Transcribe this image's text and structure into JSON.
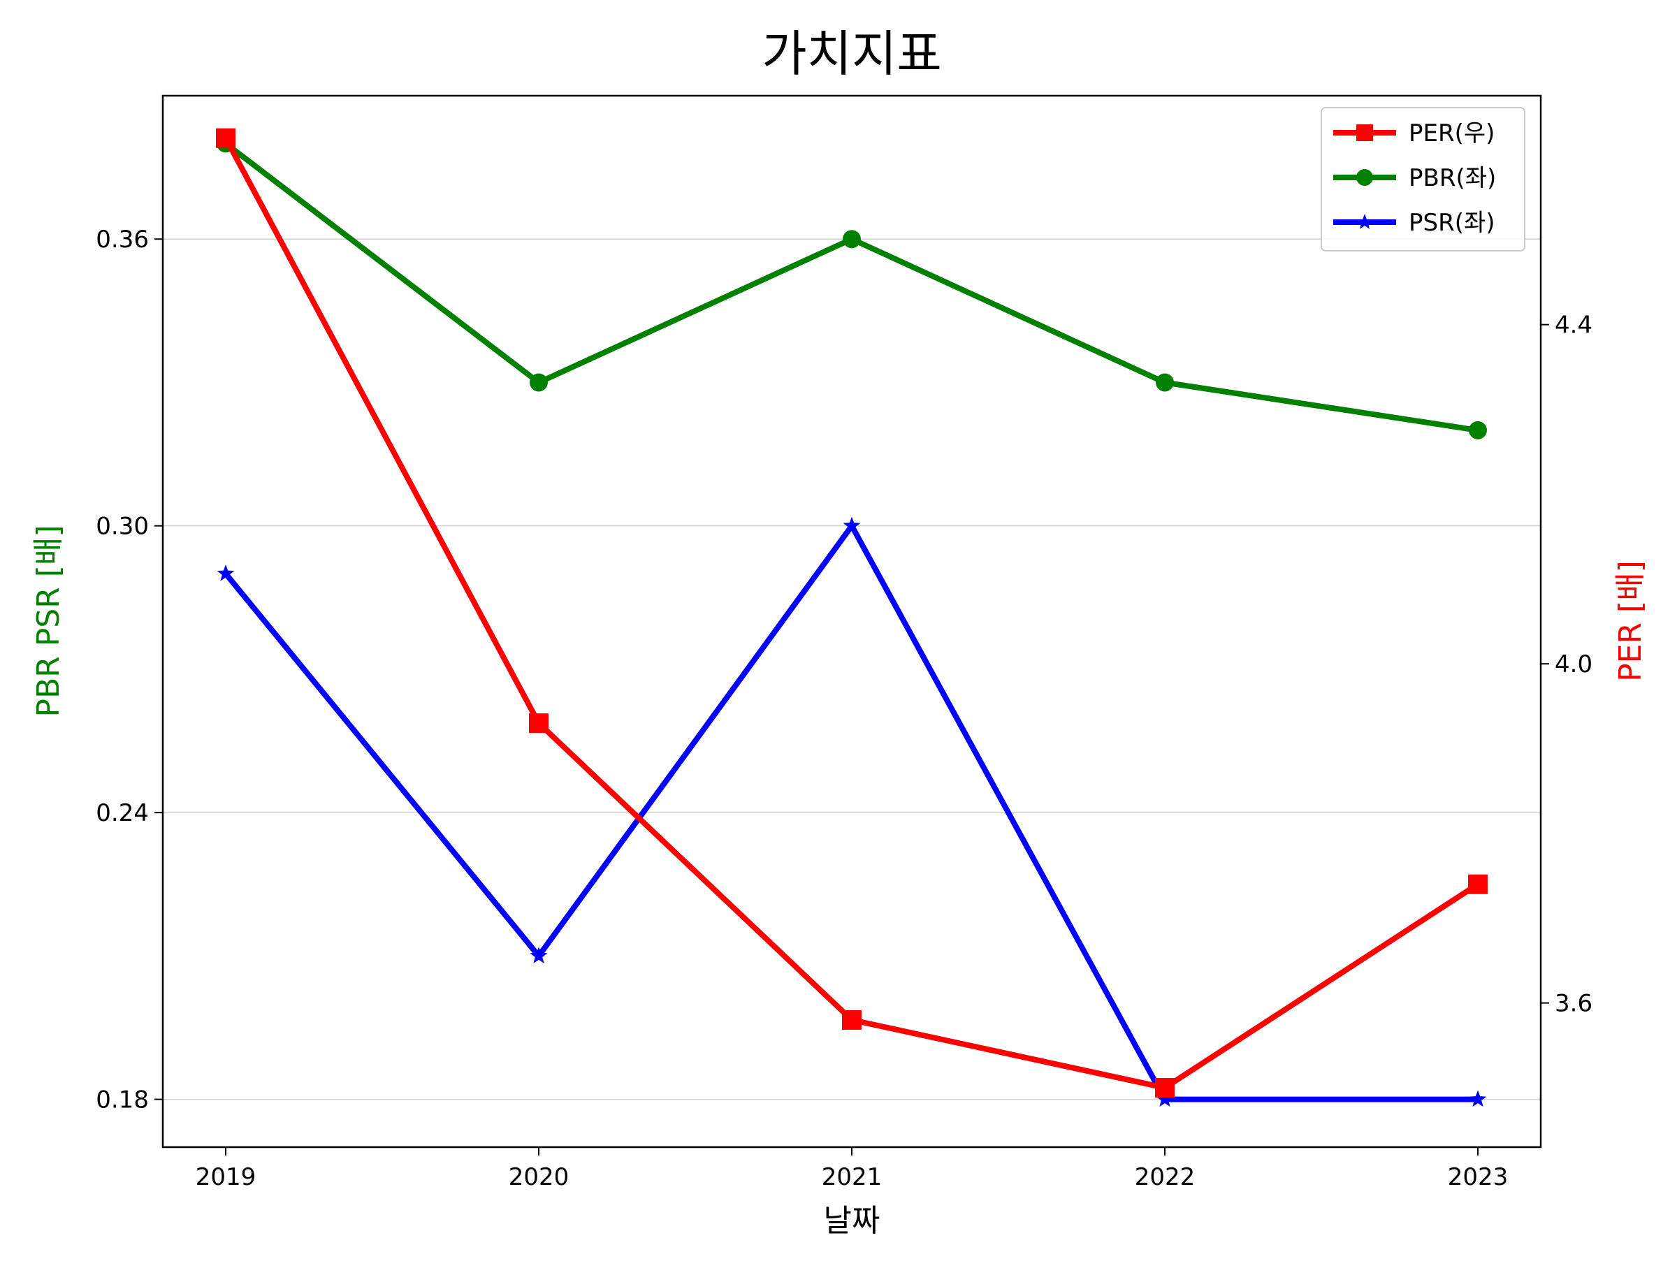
{
  "chart_data": {
    "type": "line",
    "title": "가치지표",
    "xlabel": "날짜",
    "ylabel_left": "PBR PSR [배]",
    "ylabel_right": "PER [배]",
    "categories": [
      "2019",
      "2020",
      "2021",
      "2022",
      "2023"
    ],
    "left_axis": {
      "ylim": [
        0.17,
        0.39
      ],
      "ticks": [
        0.18,
        0.24,
        0.3,
        0.36
      ],
      "tick_labels": [
        "0.18",
        "0.24",
        "0.30",
        "0.36"
      ]
    },
    "right_axis": {
      "ylim": [
        3.43,
        4.67
      ],
      "ticks": [
        3.6,
        4.0,
        4.4
      ],
      "tick_labels": [
        "3.6",
        "4.0",
        "4.4"
      ]
    },
    "grid": "horizontal (left axis)",
    "legend_position": "top-right",
    "series": [
      {
        "name": "PER(우)",
        "axis": "right",
        "color": "#ff0000",
        "marker": "square",
        "values": [
          4.62,
          3.93,
          3.58,
          3.5,
          3.74
        ]
      },
      {
        "name": "PBR(좌)",
        "axis": "left",
        "color": "#008000",
        "marker": "circle",
        "values": [
          0.38,
          0.33,
          0.36,
          0.33,
          0.32
        ]
      },
      {
        "name": "PSR(좌)",
        "axis": "left",
        "color": "#0000ff",
        "marker": "star",
        "values": [
          0.29,
          0.21,
          0.3,
          0.18,
          0.18
        ]
      }
    ],
    "colors": {
      "left_axis_label": "#008000",
      "right_axis_label": "#ff0000",
      "grid": "#d0d0d0"
    }
  }
}
